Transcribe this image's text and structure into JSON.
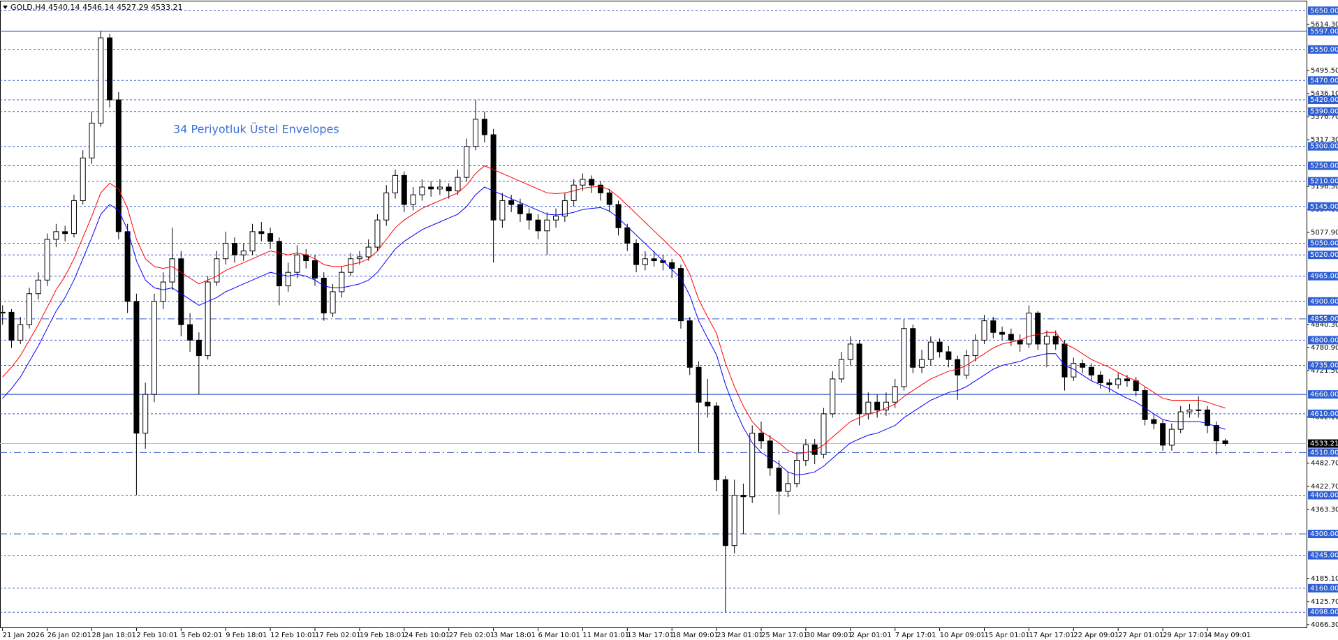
{
  "chart_data": {
    "type": "candlestick",
    "title": "GOLD,H4",
    "annotation": "34 Periyotluk Üstel Envelopes",
    "ylim": [
      4057,
      5674
    ],
    "categories": [
      "21 Jan 2026",
      null,
      null,
      null,
      null,
      "26 Jan 02:01",
      null,
      null,
      null,
      null,
      "28 Jan 18:01",
      null,
      null,
      null,
      null,
      "2 Feb 10:01",
      null,
      null,
      null,
      null,
      "5 Feb 02:01",
      null,
      null,
      null,
      null,
      "9 Feb 18:01",
      null,
      null,
      null,
      null,
      "12 Feb 10:01",
      null,
      null,
      null,
      null,
      "17 Feb 02:01",
      null,
      null,
      null,
      null,
      "19 Feb 18:01",
      null,
      null,
      null,
      null,
      "24 Feb 10:01",
      null,
      null,
      null,
      null,
      "27 Feb 02:01",
      null,
      null,
      null,
      null,
      "3 Mar 18:01",
      null,
      null,
      null,
      null,
      "6 Mar 10:01",
      null,
      null,
      null,
      null,
      "11 Mar 01:01",
      null,
      null,
      null,
      null,
      "13 Mar 17:01",
      null,
      null,
      null,
      null,
      "18 Mar 09:01",
      null,
      null,
      null,
      null,
      "23 Mar 01:01",
      null,
      null,
      null,
      null,
      "25 Mar 17:01",
      null,
      null,
      null,
      null,
      "30 Mar 09:01",
      null,
      null,
      null,
      null,
      "2 Apr 01:01",
      null,
      null,
      null,
      null,
      "7 Apr 17:01",
      null,
      null,
      null,
      null,
      "10 Apr 09:01",
      null,
      null,
      null,
      null,
      "15 Apr 01:01",
      null,
      null,
      null,
      null,
      "17 Apr 17:01",
      null,
      null,
      null,
      null,
      "22 Apr 09:01",
      null,
      null,
      null,
      null,
      "27 Apr 01:01",
      null,
      null,
      null,
      null,
      "29 Apr 17:01",
      null,
      null,
      null,
      null,
      "4 May 09:01",
      null,
      null
    ],
    "open": [
      4870,
      4872,
      4800,
      4840,
      4920,
      4955,
      5060,
      5080,
      5075,
      5160,
      5270,
      5360,
      5580,
      5420,
      5080,
      4900,
      4560,
      4660,
      4900,
      4950,
      5010,
      4840,
      4800,
      4760,
      4950,
      5010,
      5050,
      5020,
      5030,
      5080,
      5075,
      5055,
      4940,
      4975,
      5020,
      5005,
      4960,
      4870,
      4925,
      4975,
      5010,
      5015,
      5040,
      5110,
      5180,
      5225,
      5150,
      5175,
      5195,
      5190,
      5195,
      5185,
      5220,
      5300,
      5370,
      5330,
      5110,
      5160,
      5150,
      5126,
      5110,
      5082,
      5110,
      5120,
      5160,
      5200,
      5215,
      5200,
      5180,
      5150,
      5090,
      5050,
      4995,
      5010,
      5005,
      5000,
      4985,
      4850,
      4730,
      4640,
      4630,
      4440,
      4270,
      4400,
      4396,
      4560,
      4540,
      4470,
      4410,
      4430,
      4490,
      4530,
      4505,
      4610,
      4700,
      4750,
      4790,
      4610,
      4640,
      4620,
      4640,
      4680,
      4830,
      4730,
      4750,
      4795,
      4770,
      4750,
      4710,
      4760,
      4800,
      4850,
      4820,
      4815,
      4800,
      4790,
      4870,
      4790,
      4810,
      4790,
      4705,
      4740,
      4730,
      4710,
      4690,
      4685,
      4700,
      4695,
      4670,
      4595,
      4585,
      4529,
      4570,
      4615,
      4620,
      4620,
      4580,
      4540.14
    ],
    "high": [
      4890,
      4880,
      4860,
      4935,
      4975,
      5075,
      5100,
      5095,
      5175,
      5290,
      5390,
      5597,
      5590,
      5440,
      5100,
      4920,
      4690,
      4920,
      4975,
      5090,
      5030,
      4870,
      4820,
      4965,
      5030,
      5080,
      5065,
      5050,
      5100,
      5105,
      5090,
      5065,
      5000,
      5045,
      5035,
      5020,
      4975,
      4945,
      4990,
      5025,
      5030,
      5060,
      5125,
      5200,
      5240,
      5235,
      5195,
      5215,
      5210,
      5215,
      5205,
      5240,
      5320,
      5420,
      5390,
      5345,
      5180,
      5175,
      5165,
      5140,
      5125,
      5130,
      5140,
      5180,
      5215,
      5230,
      5225,
      5210,
      5190,
      5160,
      5100,
      5060,
      5030,
      5030,
      5020,
      5010,
      4995,
      4860,
      4745,
      4700,
      4640,
      4450,
      4440,
      4430,
      4580,
      4590,
      4555,
      4490,
      4460,
      4510,
      4545,
      4545,
      4625,
      4720,
      4770,
      4810,
      4800,
      4665,
      4660,
      4665,
      4700,
      4855,
      4840,
      4775,
      4810,
      4805,
      4785,
      4760,
      4775,
      4815,
      4865,
      4860,
      4835,
      4830,
      4815,
      4890,
      4875,
      4825,
      4825,
      4800,
      4755,
      4750,
      4740,
      4720,
      4700,
      4715,
      4710,
      4705,
      4680,
      4610,
      4595,
      4585,
      4630,
      4635,
      4655,
      4630,
      4590,
      4546.14
    ],
    "low": [
      4840,
      4780,
      4790,
      4830,
      4905,
      4940,
      5040,
      5055,
      5065,
      5150,
      5255,
      5350,
      5400,
      5060,
      4870,
      4400,
      4520,
      4640,
      4880,
      4930,
      4810,
      4770,
      4660,
      4750,
      4940,
      4995,
      5000,
      5005,
      5020,
      5055,
      5035,
      4890,
      4925,
      4960,
      4985,
      4940,
      4850,
      4860,
      4910,
      4965,
      4995,
      5005,
      5030,
      5095,
      5165,
      5130,
      5135,
      5160,
      5170,
      5175,
      5165,
      5175,
      5210,
      5290,
      5310,
      5000,
      5090,
      5130,
      5105,
      5085,
      5060,
      5020,
      5090,
      5105,
      5145,
      5185,
      5180,
      5160,
      5130,
      5070,
      5030,
      4975,
      4980,
      4990,
      4980,
      4960,
      4830,
      4710,
      4510,
      4600,
      4410,
      4098,
      4250,
      4300,
      4380,
      4520,
      4450,
      4350,
      4395,
      4420,
      4475,
      4480,
      4495,
      4600,
      4690,
      4735,
      4580,
      4595,
      4600,
      4605,
      4625,
      4670,
      4715,
      4715,
      4735,
      4755,
      4730,
      4646,
      4700,
      4745,
      4790,
      4805,
      4800,
      4785,
      4770,
      4780,
      4775,
      4730,
      4775,
      4670,
      4695,
      4715,
      4695,
      4675,
      4665,
      4675,
      4680,
      4655,
      4580,
      4570,
      4515,
      4515,
      4560,
      4600,
      4600,
      4560,
      4505,
      4527.29
    ],
    "close": [
      4872,
      4800,
      4840,
      4920,
      4955,
      5060,
      5080,
      5075,
      5160,
      5270,
      5360,
      5580,
      5420,
      5080,
      4900,
      4560,
      4660,
      4900,
      4950,
      5010,
      4840,
      4800,
      4760,
      4950,
      5010,
      5050,
      5020,
      5030,
      5080,
      5075,
      5055,
      4940,
      4975,
      5020,
      5005,
      4960,
      4870,
      4925,
      4975,
      5010,
      5015,
      5040,
      5110,
      5180,
      5225,
      5150,
      5175,
      5195,
      5190,
      5195,
      5185,
      5220,
      5300,
      5370,
      5330,
      5110,
      5160,
      5150,
      5126,
      5110,
      5082,
      5110,
      5120,
      5160,
      5200,
      5215,
      5200,
      5180,
      5150,
      5090,
      5050,
      4995,
      5010,
      5005,
      5000,
      4985,
      4850,
      4730,
      4640,
      4630,
      4440,
      4270,
      4400,
      4396,
      4560,
      4540,
      4470,
      4410,
      4430,
      4490,
      4530,
      4505,
      4610,
      4700,
      4750,
      4790,
      4610,
      4640,
      4620,
      4640,
      4680,
      4830,
      4730,
      4750,
      4795,
      4770,
      4750,
      4710,
      4760,
      4800,
      4850,
      4820,
      4815,
      4800,
      4790,
      4870,
      4790,
      4810,
      4790,
      4705,
      4740,
      4730,
      4710,
      4690,
      4685,
      4700,
      4695,
      4670,
      4595,
      4585,
      4529,
      4570,
      4615,
      4620,
      4620,
      4580,
      4540.14,
      4533.21
    ],
    "envelopes": [
      {
        "color": "#ff0000",
        "values": [
          4705,
          4730,
          4760,
          4800,
          4840,
          4885,
          4930,
          4965,
          5010,
          5065,
          5120,
          5180,
          5205,
          5190,
          5140,
          5060,
          5010,
          4990,
          4985,
          4990,
          4975,
          4960,
          4945,
          4955,
          4965,
          4980,
          4990,
          5000,
          5010,
          5020,
          5030,
          5025,
          5020,
          5025,
          5020,
          5010,
          4995,
          4990,
          4990,
          4995,
          5000,
          5010,
          5030,
          5060,
          5090,
          5110,
          5125,
          5140,
          5150,
          5160,
          5170,
          5180,
          5200,
          5230,
          5250,
          5240,
          5230,
          5220,
          5210,
          5200,
          5190,
          5180,
          5178,
          5180,
          5185,
          5192,
          5195,
          5197,
          5188,
          5170,
          5148,
          5126,
          5104,
          5082,
          5060,
          5037,
          5015,
          4970,
          4905,
          4860,
          4817,
          4740,
          4680,
          4630,
          4590,
          4565,
          4550,
          4535,
          4515,
          4507,
          4510,
          4515,
          4530,
          4550,
          4570,
          4590,
          4600,
          4610,
          4615,
          4625,
          4635,
          4655,
          4670,
          4685,
          4700,
          4710,
          4720,
          4725,
          4735,
          4750,
          4765,
          4780,
          4790,
          4795,
          4800,
          4810,
          4815,
          4820,
          4820,
          4790,
          4780,
          4765,
          4750,
          4740,
          4730,
          4717,
          4705,
          4695,
          4680,
          4665,
          4650,
          4645,
          4645,
          4645,
          4645,
          4640,
          4632,
          4625
        ]
      },
      {
        "color": "#0000ff",
        "values": [
          4650,
          4675,
          4705,
          4745,
          4785,
          4830,
          4875,
          4910,
          4955,
          5010,
          5065,
          5125,
          5150,
          5135,
          5085,
          5005,
          4955,
          4935,
          4930,
          4935,
          4920,
          4905,
          4890,
          4900,
          4910,
          4925,
          4935,
          4945,
          4955,
          4965,
          4975,
          4970,
          4965,
          4970,
          4965,
          4955,
          4940,
          4935,
          4935,
          4940,
          4945,
          4955,
          4975,
          5005,
          5035,
          5055,
          5070,
          5085,
          5095,
          5105,
          5115,
          5125,
          5145,
          5175,
          5195,
          5185,
          5175,
          5165,
          5155,
          5145,
          5135,
          5125,
          5123,
          5125,
          5130,
          5137,
          5140,
          5142,
          5133,
          5115,
          5093,
          5071,
          5049,
          5027,
          5005,
          4982,
          4960,
          4915,
          4850,
          4805,
          4762,
          4685,
          4625,
          4575,
          4535,
          4510,
          4495,
          4480,
          4460,
          4452,
          4455,
          4460,
          4475,
          4495,
          4515,
          4535,
          4545,
          4555,
          4560,
          4570,
          4580,
          4600,
          4615,
          4630,
          4645,
          4655,
          4665,
          4670,
          4680,
          4695,
          4710,
          4725,
          4735,
          4740,
          4745,
          4755,
          4760,
          4765,
          4765,
          4735,
          4725,
          4710,
          4695,
          4685,
          4675,
          4662,
          4650,
          4640,
          4625,
          4610,
          4595,
          4590,
          4590,
          4590,
          4590,
          4585,
          4577,
          4570
        ]
      }
    ],
    "yticks": [
      {
        "value": 5614.3,
        "label": "5614.30"
      },
      {
        "value": 5495.5,
        "label": "5495.50"
      },
      {
        "value": 5436.1,
        "label": "5436.10"
      },
      {
        "value": 5376.7,
        "label": "5376.70"
      },
      {
        "value": 5317.3,
        "label": "5317.30"
      },
      {
        "value": 5196.5,
        "label": "5196.50"
      },
      {
        "value": 5137.1,
        "label": "5137.10"
      },
      {
        "value": 5077.9,
        "label": "5077.90"
      },
      {
        "value": 4840.3,
        "label": "4840.30"
      },
      {
        "value": 4780.9,
        "label": "4780.90"
      },
      {
        "value": 4721.5,
        "label": "4721.50"
      },
      {
        "value": 4602.1,
        "label": "4602.10"
      },
      {
        "value": 4482.7,
        "label": "4482.70"
      },
      {
        "value": 4422.7,
        "label": "4422.70"
      },
      {
        "value": 4363.3,
        "label": "4363.30"
      },
      {
        "value": 4185.1,
        "label": "4185.10"
      },
      {
        "value": 4125.7,
        "label": "4125.70"
      },
      {
        "value": 4066.3,
        "label": "4066.30"
      }
    ],
    "levels": [
      {
        "value": 5650,
        "label": "5650.00",
        "style": "dashed"
      },
      {
        "value": 5597,
        "label": "5597.00",
        "style": "solid"
      },
      {
        "value": 5550,
        "label": "5550.00",
        "style": "dashed"
      },
      {
        "value": 5470,
        "label": "5470.00",
        "style": "dashed"
      },
      {
        "value": 5420,
        "label": "5420.00",
        "style": "dashed"
      },
      {
        "value": 5390,
        "label": "5390.00",
        "style": "dashed"
      },
      {
        "value": 5300,
        "label": "5300.00",
        "style": "dashed"
      },
      {
        "value": 5250,
        "label": "5250.00",
        "style": "dashed"
      },
      {
        "value": 5210,
        "label": "5210.00",
        "style": "dashed"
      },
      {
        "value": 5145,
        "label": "5145.00",
        "style": "dashed"
      },
      {
        "value": 5050,
        "label": "5050.00",
        "style": "dashed"
      },
      {
        "value": 5020,
        "label": "5020.00",
        "style": "dashed"
      },
      {
        "value": 4965,
        "label": "4965.00",
        "style": "dashed"
      },
      {
        "value": 4900,
        "label": "4900.00",
        "style": "dashed"
      },
      {
        "value": 4855,
        "label": "4855.00",
        "style": "dashdot"
      },
      {
        "value": 4800,
        "label": "4800.00",
        "style": "dashed"
      },
      {
        "value": 4735,
        "label": "4735.00",
        "style": "dashed"
      },
      {
        "value": 4660,
        "label": "4660.00",
        "style": "solid"
      },
      {
        "value": 4610,
        "label": "4610.00",
        "style": "dashed"
      },
      {
        "value": 4510,
        "label": "4510.00",
        "style": "dashdot"
      },
      {
        "value": 4400,
        "label": "4400.00",
        "style": "dashed"
      },
      {
        "value": 4300,
        "label": "4300.00",
        "style": "dashdot"
      },
      {
        "value": 4245,
        "label": "4245.00",
        "style": "dashed"
      },
      {
        "value": 4160,
        "label": "4160.00",
        "style": "dashed"
      },
      {
        "value": 4098,
        "label": "4098.00",
        "style": "dashed"
      }
    ]
  }
}
